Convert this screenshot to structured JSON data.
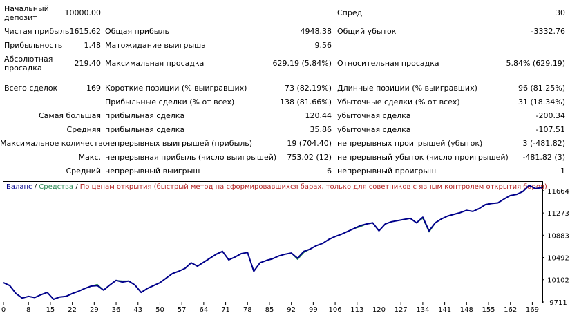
{
  "report": {
    "initial_deposit_label": "Начальный депозит",
    "initial_deposit_value": "10000.00",
    "spread_label": "Спред",
    "spread_value": "30",
    "net_profit_label": "Чистая прибыль",
    "net_profit_value": "1615.62",
    "gross_profit_label": "Общая прибыль",
    "gross_profit_value": "4948.38",
    "gross_loss_label": "Общий убыток",
    "gross_loss_value": "-3332.76",
    "profit_factor_label": "Прибыльность",
    "profit_factor_value": "1.48",
    "expected_payoff_label": "Матожидание выигрыша",
    "expected_payoff_value": "9.56",
    "abs_drawdown_label": "Абсолютная просадка",
    "abs_drawdown_value": "219.40",
    "max_drawdown_label": "Максимальная просадка",
    "max_drawdown_value": "629.19 (5.84%)",
    "rel_drawdown_label": "Относительная просадка",
    "rel_drawdown_value": "5.84% (629.19)",
    "total_trades_label": "Всего сделок",
    "total_trades_value": "169",
    "short_positions_label": "Короткие позиции (% выигравших)",
    "short_positions_value": "73 (82.19%)",
    "long_positions_label": "Длинные позиции (% выигравших)",
    "long_positions_value": "96 (81.25%)",
    "profit_trades_label": "Прибыльные сделки (% от всех)",
    "profit_trades_value": "138 (81.66%)",
    "loss_trades_label": "Убыточные сделки (% от всех)",
    "loss_trades_value": "31 (18.34%)",
    "largest_label": "Самая большая",
    "largest_profit_label": "прибыльная сделка",
    "largest_profit_value": "120.44",
    "largest_loss_label": "убыточная сделка",
    "largest_loss_value": "-200.34",
    "average_label": "Средняя",
    "average_profit_label": "прибыльная сделка",
    "average_profit_value": "35.86",
    "average_loss_label": "убыточная сделка",
    "average_loss_value": "-107.51",
    "max_count_label": "Максимальное количество",
    "max_consec_wins_label": "непрерывных выигрышей (прибыль)",
    "max_consec_wins_value": "19 (704.40)",
    "max_consec_losses_label": "непрерывных проигрышей (убыток)",
    "max_consec_losses_value": "3 (-481.82)",
    "max_label": "Макс.",
    "max_consec_profit_label": "непрерывная прибыль (число выигрышей)",
    "max_consec_profit_value": "753.02 (12)",
    "max_consec_loss_label": "непрерывный убыток (число проигрышей)",
    "max_consec_loss_value": "-481.82 (3)",
    "avg_label": "Средний",
    "avg_consec_wins_label": "непрерывный выигрыш",
    "avg_consec_wins_value": "6",
    "avg_consec_losses_label": "непрерывный проигрыш",
    "avg_consec_losses_value": "1"
  },
  "legend": {
    "balance": "Баланс",
    "sep1": " / ",
    "equity": "Средства",
    "sep2": " / ",
    "mode": "По ценам открытия (быстрый метод на сформировавшихся барах, только для советников с явным контролем открытия баров)"
  },
  "colors": {
    "balance": "#00008b",
    "equity": "#2e8b57",
    "mode": "#b22222"
  },
  "chart_data": {
    "type": "line",
    "x_ticks": [
      "0",
      "8",
      "15",
      "22",
      "29",
      "36",
      "43",
      "50",
      "57",
      "64",
      "71",
      "78",
      "85",
      "92",
      "99",
      "106",
      "113",
      "120",
      "127",
      "134",
      "141",
      "148",
      "155",
      "162",
      "169"
    ],
    "y_ticks": [
      "9711",
      "10102",
      "10492",
      "10883",
      "11273",
      "11664"
    ],
    "xlim": [
      0,
      172
    ],
    "ylim": [
      9711,
      11820
    ],
    "series": [
      {
        "name": "Баланс",
        "x": [
          0,
          2,
          4,
          6,
          8,
          10,
          12,
          14,
          16,
          18,
          20,
          22,
          24,
          26,
          28,
          30,
          32,
          34,
          36,
          38,
          40,
          42,
          44,
          46,
          48,
          50,
          52,
          54,
          56,
          58,
          60,
          62,
          64,
          66,
          68,
          70,
          72,
          74,
          76,
          78,
          80,
          82,
          84,
          86,
          88,
          90,
          92,
          94,
          96,
          98,
          100,
          102,
          104,
          106,
          108,
          110,
          112,
          114,
          116,
          118,
          120,
          122,
          124,
          126,
          128,
          130,
          132,
          134,
          136,
          138,
          140,
          142,
          144,
          146,
          148,
          150,
          152,
          154,
          156,
          158,
          160,
          162,
          164,
          166,
          168,
          170,
          172
        ],
        "values": [
          10050,
          10000,
          9860,
          9780,
          9810,
          9790,
          9840,
          9880,
          9760,
          9800,
          9810,
          9860,
          9900,
          9950,
          9990,
          10000,
          9920,
          10010,
          10090,
          10060,
          10080,
          10010,
          9880,
          9950,
          10000,
          10050,
          10130,
          10210,
          10250,
          10300,
          10400,
          10340,
          10410,
          10480,
          10550,
          10600,
          10450,
          10500,
          10560,
          10580,
          10250,
          10400,
          10440,
          10470,
          10520,
          10550,
          10570,
          10480,
          10600,
          10640,
          10700,
          10740,
          10810,
          10860,
          10900,
          10950,
          11000,
          11050,
          11080,
          11100,
          10960,
          11080,
          11120,
          11140,
          11160,
          11180,
          11100,
          11200,
          10960,
          11100,
          11170,
          11220,
          11250,
          11280,
          11320,
          11300,
          11350,
          11420,
          11440,
          11450,
          11520,
          11580,
          11600,
          11650,
          11760,
          11700,
          11720
        ]
      },
      {
        "name": "Средства",
        "x": [
          0,
          2,
          4,
          6,
          8,
          10,
          12,
          14,
          16,
          18,
          20,
          22,
          24,
          26,
          28,
          30,
          32,
          34,
          36,
          38,
          40,
          42,
          44,
          46,
          48,
          50,
          52,
          54,
          56,
          58,
          60,
          62,
          64,
          66,
          68,
          70,
          72,
          74,
          76,
          78,
          80,
          82,
          84,
          86,
          88,
          90,
          92,
          94,
          96,
          98,
          100,
          102,
          104,
          106,
          108,
          110,
          112,
          114,
          116,
          118,
          120,
          122,
          124,
          126,
          128,
          130,
          132,
          134,
          136,
          138,
          140,
          142,
          144,
          146,
          148,
          150,
          152,
          154,
          156,
          158,
          160,
          162,
          164,
          166,
          168,
          170,
          172
        ],
        "values": [
          10050,
          10000,
          9860,
          9780,
          9810,
          9790,
          9840,
          9880,
          9760,
          9800,
          9810,
          9860,
          9900,
          9950,
          9990,
          10020,
          9920,
          10010,
          10090,
          10080,
          10080,
          10010,
          9880,
          9950,
          10000,
          10050,
          10130,
          10210,
          10250,
          10300,
          10400,
          10340,
          10410,
          10480,
          10550,
          10600,
          10450,
          10500,
          10560,
          10580,
          10250,
          10400,
          10440,
          10470,
          10520,
          10550,
          10570,
          10460,
          10580,
          10640,
          10700,
          10740,
          10810,
          10860,
          10900,
          10950,
          11000,
          11030,
          11080,
          11100,
          10960,
          11080,
          11120,
          11140,
          11160,
          11180,
          11100,
          11180,
          10940,
          11100,
          11170,
          11220,
          11250,
          11280,
          11320,
          11300,
          11350,
          11420,
          11440,
          11450,
          11520,
          11580,
          11600,
          11650,
          11760,
          11700,
          11720
        ]
      }
    ]
  }
}
